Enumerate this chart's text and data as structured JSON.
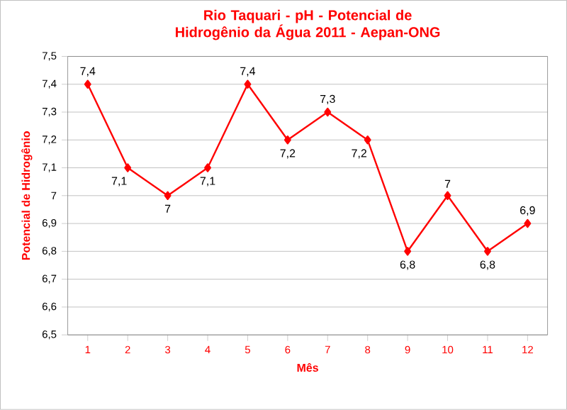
{
  "chart_data": {
    "type": "line",
    "title": "Rio Taquari - pH - Potencial de Hidrogênio da Água 2011 - Aepan-ONG",
    "xlabel": "Mês",
    "ylabel": "Potencial de Hidrogênio",
    "categories": [
      "1",
      "2",
      "3",
      "4",
      "5",
      "6",
      "7",
      "8",
      "9",
      "10",
      "11",
      "12"
    ],
    "series": [
      {
        "color": "#ff0000",
        "values": [
          7.4,
          7.1,
          7.0,
          7.1,
          7.4,
          7.2,
          7.3,
          7.2,
          6.8,
          7.0,
          6.8,
          6.9
        ],
        "value_labels": [
          "7,4",
          "7,1",
          "7",
          "7,1",
          "7,4",
          "7,2",
          "7,3",
          "7,2",
          "6,8",
          "7",
          "6,8",
          "6,9"
        ]
      }
    ],
    "ylim": [
      6.5,
      7.5
    ],
    "yticks": [
      {
        "value": 6.5,
        "label": "6,5"
      },
      {
        "value": 6.6,
        "label": "6,6"
      },
      {
        "value": 6.7,
        "label": "6,7"
      },
      {
        "value": 6.8,
        "label": "6,8"
      },
      {
        "value": 6.9,
        "label": "6,9"
      },
      {
        "value": 7,
        "label": "7"
      },
      {
        "value": 7.1,
        "label": "7,1"
      },
      {
        "value": 7.2,
        "label": "7,2"
      },
      {
        "value": 7.3,
        "label": "7,3"
      },
      {
        "value": 7.4,
        "label": "7,4"
      },
      {
        "value": 7.5,
        "label": "7,5"
      }
    ],
    "grid": "y",
    "marker": "diamond",
    "line_style": "solid"
  }
}
